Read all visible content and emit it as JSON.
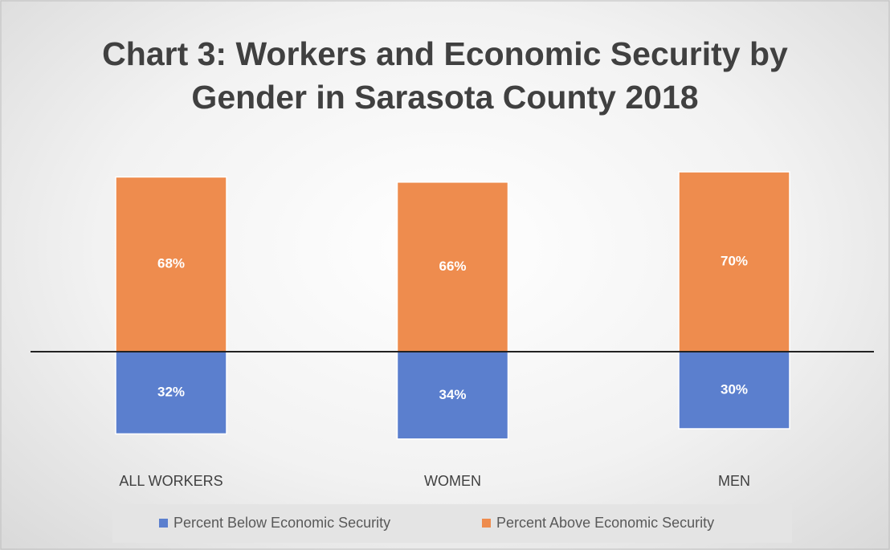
{
  "chart_data": {
    "type": "diverging",
    "title": "Chart 3: Workers and Economic Security by Gender in Sarasota County 2018",
    "categories": [
      "ALL WORKERS",
      "WOMEN",
      "MEN"
    ],
    "series": [
      {
        "name": "Percent Below Economic Security",
        "color": "#5b7fce",
        "values": [
          32,
          34,
          30
        ],
        "value_labels": [
          "32%",
          "34%",
          "30%"
        ]
      },
      {
        "name": "Percent Above Economic Security",
        "color": "#ee8c4e",
        "values": [
          68,
          66,
          70
        ],
        "value_labels": [
          "68%",
          "66%",
          "70%"
        ]
      }
    ],
    "legend": "bottom"
  }
}
